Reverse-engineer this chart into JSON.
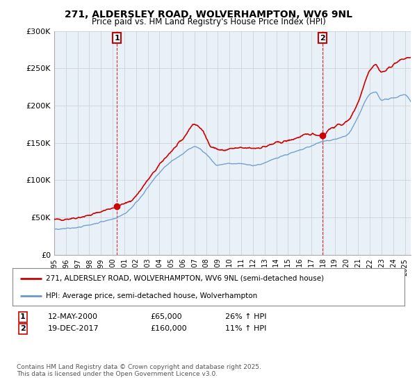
{
  "title_line1": "271, ALDERSLEY ROAD, WOLVERHAMPTON, WV6 9NL",
  "title_line2": "Price paid vs. HM Land Registry's House Price Index (HPI)",
  "ylim": [
    0,
    300000
  ],
  "xlim_start": 1995.0,
  "xlim_end": 2025.5,
  "yticks": [
    0,
    50000,
    100000,
    150000,
    200000,
    250000,
    300000
  ],
  "ytick_labels": [
    "£0",
    "£50K",
    "£100K",
    "£150K",
    "£200K",
    "£250K",
    "£300K"
  ],
  "xticks": [
    1995,
    1996,
    1997,
    1998,
    1999,
    2000,
    2001,
    2002,
    2003,
    2004,
    2005,
    2006,
    2007,
    2008,
    2009,
    2010,
    2011,
    2012,
    2013,
    2014,
    2015,
    2016,
    2017,
    2018,
    2019,
    2020,
    2021,
    2022,
    2023,
    2024,
    2025
  ],
  "transaction1_x": 2000.36,
  "transaction1_y": 65000,
  "transaction1_label": "1",
  "transaction1_date": "12-MAY-2000",
  "transaction1_price": "£65,000",
  "transaction1_hpi": "26% ↑ HPI",
  "transaction2_x": 2017.96,
  "transaction2_y": 160000,
  "transaction2_label": "2",
  "transaction2_date": "19-DEC-2017",
  "transaction2_price": "£160,000",
  "transaction2_hpi": "11% ↑ HPI",
  "line_color_property": "#cc0000",
  "line_color_hpi": "#6699cc",
  "legend_label_property": "271, ALDERSLEY ROAD, WOLVERHAMPTON, WV6 9NL (semi-detached house)",
  "legend_label_hpi": "HPI: Average price, semi-detached house, Wolverhampton",
  "footer_text": "Contains HM Land Registry data © Crown copyright and database right 2025.\nThis data is licensed under the Open Government Licence v3.0.",
  "background_color": "#ffffff",
  "grid_color": "#cccccc",
  "prop_keypoints_x": [
    1995.0,
    1996.0,
    1997.0,
    1998.0,
    1999.0,
    2000.36,
    2001.5,
    2003.0,
    2004.5,
    2006.0,
    2007.0,
    2007.5,
    2008.5,
    2009.5,
    2010.0,
    2011.0,
    2012.0,
    2013.0,
    2014.0,
    2015.0,
    2016.0,
    2017.0,
    2017.96,
    2018.5,
    2019.0,
    2020.0,
    2021.0,
    2022.0,
    2022.5,
    2023.0,
    2024.0,
    2024.5,
    2025.5
  ],
  "prop_keypoints_y": [
    47000,
    48000,
    50000,
    53000,
    58000,
    65000,
    72000,
    100000,
    130000,
    155000,
    175000,
    170000,
    145000,
    140000,
    142000,
    143000,
    143000,
    145000,
    150000,
    153000,
    158000,
    162000,
    160000,
    168000,
    172000,
    178000,
    205000,
    248000,
    255000,
    245000,
    255000,
    260000,
    265000
  ],
  "hpi_keypoints_x": [
    1995.0,
    1996.0,
    1997.0,
    1998.0,
    1999.0,
    2000.0,
    2001.0,
    2002.0,
    2003.0,
    2004.0,
    2005.0,
    2006.0,
    2007.0,
    2008.0,
    2009.0,
    2010.0,
    2011.0,
    2012.0,
    2013.0,
    2014.0,
    2015.0,
    2016.0,
    2017.0,
    2018.0,
    2019.0,
    2020.0,
    2021.0,
    2022.0,
    2022.5,
    2023.0,
    2024.0,
    2025.0,
    2025.5
  ],
  "hpi_keypoints_y": [
    34000,
    35000,
    37000,
    40000,
    44000,
    48000,
    55000,
    70000,
    90000,
    110000,
    125000,
    135000,
    145000,
    135000,
    120000,
    122000,
    122000,
    120000,
    123000,
    130000,
    135000,
    140000,
    146000,
    152000,
    155000,
    160000,
    185000,
    215000,
    218000,
    208000,
    210000,
    215000,
    205000
  ]
}
